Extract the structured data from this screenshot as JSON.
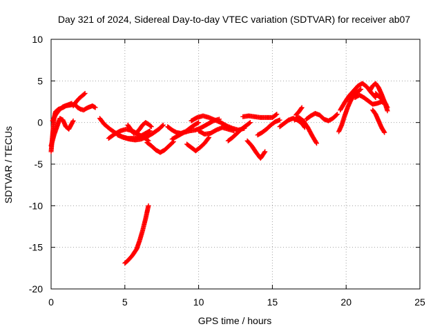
{
  "chart_data": {
    "type": "scatter",
    "title": "Day 321 of 2024, Sidereal Day-to-day VTEC variation (SDTVAR) for receiver ab07",
    "xlabel": "GPS time / hours",
    "ylabel": "SDTVAR / TECUs",
    "xlim": [
      0,
      25
    ],
    "ylim": [
      -20,
      10
    ],
    "xticks": [
      0,
      5,
      10,
      15,
      20,
      25
    ],
    "yticks": [
      -20,
      -15,
      -10,
      -5,
      0,
      5,
      10
    ],
    "grid": true,
    "marker": "+",
    "series": [
      {
        "name": "SDTVAR",
        "color": "#ff0000",
        "tracks": [
          {
            "x": [
              0.0,
              0.1,
              0.2,
              0.3,
              0.5,
              0.8,
              1.0,
              1.3,
              1.6,
              1.8,
              2.0,
              2.2,
              2.5,
              2.8,
              3.0
            ],
            "y": [
              -3.5,
              -1.5,
              0.5,
              1.3,
              1.6,
              1.8,
              2.0,
              2.1,
              2.2,
              1.8,
              1.6,
              1.5,
              1.8,
              2.0,
              1.8
            ]
          },
          {
            "x": [
              0.0,
              0.2,
              0.4,
              0.6,
              0.8,
              1.0,
              1.2,
              1.5
            ],
            "y": [
              -2.8,
              -1.5,
              -0.5,
              0.5,
              0.3,
              -0.5,
              -0.8,
              0.2
            ]
          },
          {
            "x": [
              1.5,
              1.7,
              1.9,
              2.1,
              2.3
            ],
            "y": [
              2.0,
              2.5,
              2.9,
              3.2,
              3.5
            ]
          },
          {
            "x": [
              0.1,
              0.3,
              0.5,
              0.8,
              1.1,
              1.4
            ],
            "y": [
              0.2,
              0.9,
              1.4,
              1.9,
              2.1,
              2.3
            ]
          },
          {
            "x": [
              3.3,
              3.6,
              4.0,
              4.4,
              4.8,
              5.2,
              5.6,
              6.0,
              6.4,
              6.7
            ],
            "y": [
              0.5,
              -0.2,
              -0.8,
              -1.3,
              -1.7,
              -1.9,
              -1.9,
              -1.7,
              -1.3,
              -1.0
            ]
          },
          {
            "x": [
              3.9,
              4.3,
              4.7,
              5.1,
              5.5,
              5.9,
              6.3,
              6.6
            ],
            "y": [
              -1.9,
              -1.4,
              -1.0,
              -0.8,
              -1.0,
              -1.4,
              -1.8,
              -2.2
            ]
          },
          {
            "x": [
              4.5,
              4.9,
              5.3,
              5.7,
              6.1,
              6.5,
              6.9,
              7.3,
              7.6
            ],
            "y": [
              -1.5,
              -1.8,
              -2.0,
              -2.1,
              -2.0,
              -1.7,
              -1.3,
              -0.8,
              -0.3
            ]
          },
          {
            "x": [
              6.5,
              6.8,
              7.1,
              7.4,
              7.7,
              8.0,
              8.3
            ],
            "y": [
              -2.4,
              -2.8,
              -3.3,
              -3.6,
              -3.3,
              -2.8,
              -2.3
            ]
          },
          {
            "x": [
              5.0,
              5.2,
              5.5,
              5.8,
              6.0,
              6.2,
              6.4,
              6.6
            ],
            "y": [
              -16.9,
              -16.6,
              -16.0,
              -15.2,
              -14.2,
              -13.0,
              -11.6,
              -10.0
            ]
          },
          {
            "x": [
              5.2,
              5.4,
              5.6,
              5.8,
              6.0,
              6.2,
              6.4,
              6.6,
              6.8
            ],
            "y": [
              -0.3,
              -0.8,
              -1.3,
              -1.2,
              -0.8,
              -0.3,
              0.0,
              -0.2,
              -0.5
            ]
          },
          {
            "x": [
              7.9,
              8.2,
              8.5,
              8.8,
              9.1,
              9.4,
              9.7,
              10.0
            ],
            "y": [
              -0.5,
              -0.9,
              -1.2,
              -1.3,
              -1.1,
              -0.7,
              -0.3,
              0.0
            ]
          },
          {
            "x": [
              8.2,
              8.6,
              9.0,
              9.4,
              9.8,
              10.2,
              10.6,
              11.0,
              11.4
            ],
            "y": [
              -2.0,
              -1.6,
              -1.2,
              -1.0,
              -0.9,
              -0.6,
              -0.2,
              0.2,
              0.4
            ]
          },
          {
            "x": [
              9.2,
              9.5,
              9.8,
              10.1,
              10.4,
              10.7
            ],
            "y": [
              -2.6,
              -3.0,
              -3.4,
              -3.0,
              -2.5,
              -1.8
            ]
          },
          {
            "x": [
              9.5,
              9.9,
              10.3,
              10.7,
              11.1,
              11.5,
              11.9,
              12.3,
              12.7,
              13.1
            ],
            "y": [
              0.2,
              0.6,
              0.8,
              0.6,
              0.3,
              0.0,
              -0.4,
              -0.7,
              -0.9,
              -0.7
            ]
          },
          {
            "x": [
              10.0,
              10.4,
              10.8,
              11.2,
              11.6,
              12.0,
              12.4
            ],
            "y": [
              -1.0,
              -1.4,
              -1.3,
              -0.9,
              -0.6,
              -0.8,
              -1.0
            ]
          },
          {
            "x": [
              12.0,
              12.3,
              12.6,
              12.9,
              13.2,
              13.5
            ],
            "y": [
              -2.2,
              -1.8,
              -1.3,
              -0.8,
              -0.4,
              0.0
            ]
          },
          {
            "x": [
              13.0,
              13.4,
              13.8,
              14.2,
              14.6,
              15.0,
              15.3
            ],
            "y": [
              0.7,
              0.8,
              0.7,
              0.6,
              0.6,
              0.6,
              1.0
            ]
          },
          {
            "x": [
              13.3,
              13.6,
              13.9,
              14.2,
              14.5
            ],
            "y": [
              -2.2,
              -2.8,
              -3.6,
              -4.3,
              -3.5
            ]
          },
          {
            "x": [
              14.0,
              14.3,
              14.6,
              14.9,
              15.2,
              15.5
            ],
            "y": [
              -1.5,
              -1.2,
              -0.8,
              -0.3,
              0.1,
              0.3
            ]
          },
          {
            "x": [
              15.5,
              15.8,
              16.1,
              16.4,
              16.7,
              17.0,
              17.2
            ],
            "y": [
              -0.5,
              -0.1,
              0.3,
              0.5,
              0.3,
              -0.1,
              -0.6
            ]
          },
          {
            "x": [
              16.5,
              16.8,
              17.1,
              17.4,
              17.7,
              18.0
            ],
            "y": [
              0.3,
              0.6,
              0.2,
              -0.6,
              -1.6,
              -2.5
            ]
          },
          {
            "x": [
              16.6,
              16.8,
              17.0
            ],
            "y": [
              0.9,
              1.3,
              1.8
            ]
          },
          {
            "x": [
              17.3,
              17.6,
              17.9,
              18.2,
              18.5,
              18.8,
              19.1,
              19.4
            ],
            "y": [
              0.4,
              0.8,
              1.1,
              0.9,
              0.4,
              0.2,
              0.5,
              1.0
            ]
          },
          {
            "x": [
              19.5,
              19.7,
              19.9,
              20.1,
              20.3,
              20.5,
              20.7,
              21.0
            ],
            "y": [
              -1.1,
              -0.3,
              0.8,
              1.8,
              2.6,
              3.2,
              3.6,
              4.0
            ]
          },
          {
            "x": [
              19.6,
              19.9,
              20.2,
              20.5,
              20.8,
              21.1,
              21.4,
              21.7,
              22.0
            ],
            "y": [
              1.5,
              2.4,
              3.2,
              3.8,
              4.4,
              4.7,
              4.3,
              3.6,
              3.0
            ]
          },
          {
            "x": [
              20.6,
              20.9,
              21.2,
              21.5,
              21.8,
              22.1,
              22.4,
              22.7
            ],
            "y": [
              3.0,
              3.3,
              3.0,
              2.6,
              2.2,
              2.3,
              2.5,
              2.2
            ]
          },
          {
            "x": [
              21.6,
              21.8,
              22.0,
              22.2,
              22.4,
              22.6,
              22.8
            ],
            "y": [
              3.8,
              4.4,
              4.7,
              4.2,
              3.4,
              2.5,
              1.4
            ]
          },
          {
            "x": [
              21.8,
              22.0,
              22.2,
              22.4,
              22.6
            ],
            "y": [
              1.5,
              1.0,
              0.2,
              -0.6,
              -1.2
            ]
          },
          {
            "x": [
              22.0,
              22.3,
              22.6,
              22.8
            ],
            "y": [
              3.5,
              3.0,
              2.5,
              1.8
            ]
          }
        ]
      }
    ]
  }
}
